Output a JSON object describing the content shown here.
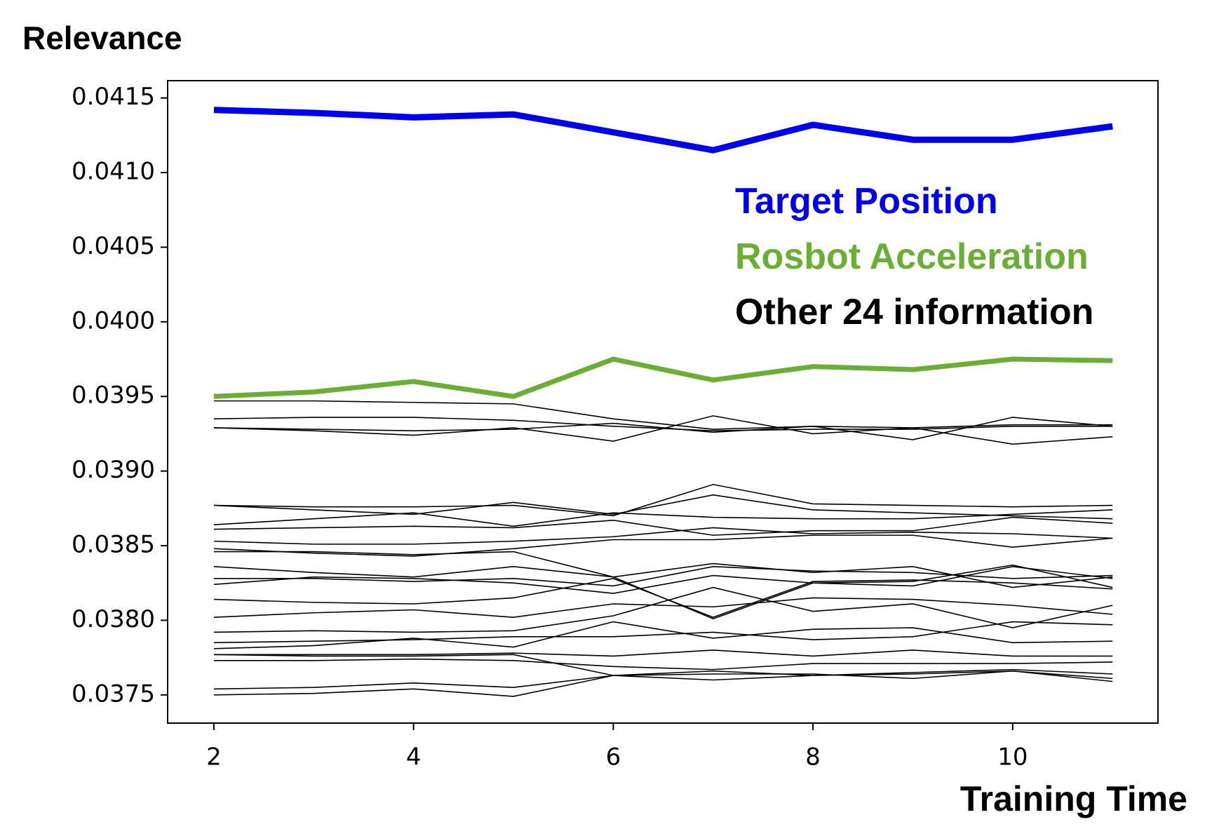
{
  "chart_data": {
    "type": "line",
    "y_title": "Relevance",
    "x_title": "Training Time",
    "x": [
      2,
      3,
      4,
      5,
      6,
      7,
      8,
      9,
      10,
      11
    ],
    "xlim": [
      1.537,
      11.455
    ],
    "xticks": [
      2,
      4,
      6,
      8,
      10
    ],
    "ylim": [
      0.037311,
      0.041616
    ],
    "yticks": [
      0.0375,
      {
        "value": 0.038,
        "label": "0.0380"
      },
      0.0385,
      {
        "value": 0.039,
        "label": "0.0390"
      },
      0.0395,
      {
        "value": 0.04,
        "label": "0.0400"
      },
      0.0405,
      {
        "value": 0.041,
        "label": "0.0410"
      },
      0.0415
    ],
    "series": [
      {
        "name": "Target Position",
        "color": "#0000ee",
        "values": [
          0.04142,
          0.0414,
          0.04137,
          0.04139,
          0.04127,
          0.04115,
          0.04132,
          0.04122,
          0.04122,
          0.04131
        ]
      },
      {
        "name": "Rosbot Acceleration",
        "color": "#6aaf35",
        "values": [
          0.0395,
          0.03953,
          0.0396,
          0.0395,
          0.03975,
          0.03961,
          0.0397,
          0.03968,
          0.03975,
          0.03974
        ]
      }
    ],
    "other_series": {
      "name": "Other 24 information",
      "color": "#000000",
      "values": [
        [
          0.03947,
          0.03947,
          0.03946,
          0.03945,
          0.03935,
          0.03928,
          0.0393,
          0.03929,
          0.03931,
          0.03931
        ],
        [
          0.03935,
          0.03936,
          0.03936,
          0.03934,
          0.0393,
          0.03927,
          0.03928,
          0.03928,
          0.0393,
          0.0393
        ],
        [
          0.03929,
          0.03927,
          0.03924,
          0.03929,
          0.0392,
          0.03937,
          0.03925,
          0.03929,
          0.03918,
          0.03923
        ],
        [
          0.03929,
          0.03928,
          0.03927,
          0.03928,
          0.03932,
          0.03926,
          0.0393,
          0.03921,
          0.03936,
          0.0393
        ],
        [
          0.03877,
          0.03876,
          0.03876,
          0.03877,
          0.0387,
          0.03891,
          0.03878,
          0.03877,
          0.03876,
          0.03877
        ],
        [
          0.03877,
          0.03874,
          0.03871,
          0.03879,
          0.03871,
          0.03884,
          0.03874,
          0.03872,
          0.0387,
          0.03868
        ],
        [
          0.03864,
          0.03868,
          0.03872,
          0.03863,
          0.03872,
          0.03869,
          0.03868,
          0.03868,
          0.03871,
          0.03874
        ],
        [
          0.03861,
          0.03862,
          0.03863,
          0.03862,
          0.03867,
          0.03857,
          0.0386,
          0.0386,
          0.03869,
          0.03865
        ],
        [
          0.03853,
          0.03851,
          0.03851,
          0.03853,
          0.03856,
          0.03862,
          0.03858,
          0.03859,
          0.03858,
          0.03855
        ],
        [
          0.03848,
          0.03845,
          0.03843,
          0.03848,
          0.03854,
          0.03854,
          0.03857,
          0.03857,
          0.03849,
          0.03855
        ],
        [
          0.03846,
          0.03846,
          0.03844,
          0.03846,
          0.03829,
          0.03801,
          0.03825,
          0.03826,
          0.03837,
          0.03822
        ],
        [
          0.03836,
          0.03832,
          0.03829,
          0.03836,
          0.03829,
          0.03838,
          0.03832,
          0.03836,
          0.03822,
          0.03829
        ],
        [
          0.03828,
          0.03828,
          0.03826,
          0.03828,
          0.03823,
          0.03836,
          0.03833,
          0.03832,
          0.03828,
          0.0383
        ],
        [
          0.03824,
          0.03829,
          0.03828,
          0.03825,
          0.03818,
          0.0383,
          0.03825,
          0.03823,
          0.03836,
          0.03828
        ],
        [
          0.03814,
          0.03812,
          0.03811,
          0.03815,
          0.03828,
          0.03802,
          0.03826,
          0.03827,
          0.03825,
          0.03821
        ],
        [
          0.03802,
          0.03805,
          0.03807,
          0.03802,
          0.03811,
          0.03809,
          0.03815,
          0.03814,
          0.0381,
          0.03804
        ],
        [
          0.03792,
          0.03793,
          0.03792,
          0.03793,
          0.03803,
          0.03822,
          0.03806,
          0.03811,
          0.03795,
          0.0381
        ],
        [
          0.03785,
          0.03786,
          0.03787,
          0.03789,
          0.03789,
          0.03792,
          0.03787,
          0.03789,
          0.03799,
          0.03797
        ],
        [
          0.03781,
          0.03783,
          0.03788,
          0.03782,
          0.03799,
          0.03788,
          0.03794,
          0.03795,
          0.03785,
          0.03786
        ],
        [
          0.03777,
          0.03777,
          0.03777,
          0.03778,
          0.03776,
          0.0378,
          0.03776,
          0.0378,
          0.03776,
          0.03776
        ],
        [
          0.03773,
          0.03773,
          0.03774,
          0.03773,
          0.03769,
          0.03767,
          0.03771,
          0.03771,
          0.03771,
          0.03772
        ],
        [
          0.03777,
          0.03776,
          0.03776,
          0.03777,
          0.03763,
          0.03764,
          0.03764,
          0.03761,
          0.03766,
          0.03761
        ],
        [
          0.03754,
          0.03755,
          0.03758,
          0.03755,
          0.03763,
          0.03766,
          0.03763,
          0.03765,
          0.03767,
          0.03764
        ],
        [
          0.0375,
          0.03751,
          0.03754,
          0.03749,
          0.03763,
          0.0376,
          0.03763,
          0.03764,
          0.03766,
          0.03759
        ]
      ]
    }
  }
}
